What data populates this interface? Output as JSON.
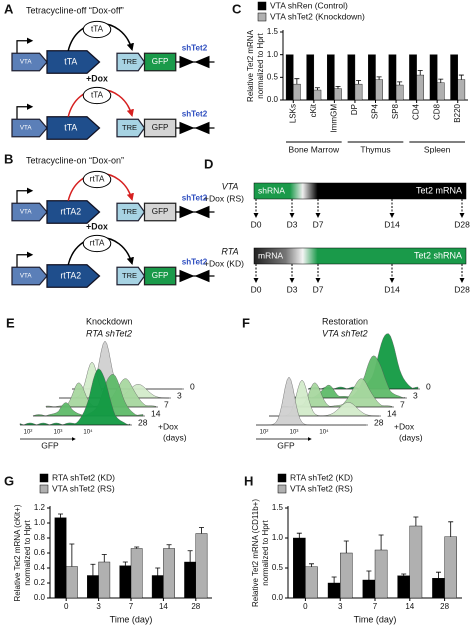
{
  "panel_a": {
    "letter": "A",
    "title": "Tetracycline-off “Dox-off”",
    "dox": "+Dox",
    "constructs": [
      {
        "promoter": "VTA",
        "driver": "tTA",
        "protein": "tTA",
        "operator": "TRE",
        "reporter": "GFP",
        "hairpin": "shTet2"
      },
      {
        "promoter": "VTA",
        "driver": "tTA",
        "protein": "tTA",
        "operator": "TRE",
        "reporter": "GFP",
        "hairpin": "shTet2"
      }
    ]
  },
  "panel_b": {
    "letter": "B",
    "title": "Tetracycline-on “Dox-on”",
    "dox": "+Dox",
    "constructs": [
      {
        "promoter": "VTA",
        "driver": "rtTA2",
        "protein": "rtTA",
        "operator": "TRE",
        "reporter": "GFP",
        "hairpin": "shTet2"
      },
      {
        "promoter": "VTA",
        "driver": "rtTA2",
        "protein": "rtTA",
        "operator": "TRE",
        "reporter": "GFP",
        "hairpin": "shTet2"
      }
    ]
  },
  "panel_d": {
    "letter": "D",
    "timelines": [
      {
        "line": "VTA",
        "treatment": "+Dox (RS)",
        "start_label": "shRNA",
        "end_label": "Tet2 mRNA"
      },
      {
        "line": "RTA",
        "treatment": "+Dox (KD)",
        "start_label": "mRNA",
        "end_label": "Tet2 shRNA"
      }
    ],
    "timepoints": [
      "D0",
      "D3",
      "D7",
      "D14",
      "D28"
    ]
  },
  "panel_e": {
    "letter": "E",
    "title": "Knockdown",
    "subtitle": "RTA shTet2",
    "days": [
      "0",
      "3",
      "7",
      "14",
      "28"
    ],
    "treatment": "+Dox",
    "unit": "(days)",
    "axis": "GFP",
    "axis_ticks": [
      "10²",
      "10³",
      "10⁴"
    ]
  },
  "panel_f": {
    "letter": "F",
    "title": "Restoration",
    "subtitle": "VTA shTet2",
    "days": [
      "0",
      "3",
      "7",
      "14",
      "28"
    ],
    "treatment": "+Dox",
    "unit": "(days)",
    "axis": "GFP",
    "axis_ticks": [
      "10²",
      "10³",
      "10⁴"
    ]
  },
  "chart_data": [
    {
      "panel": "C",
      "type": "bar",
      "ylabel": [
        "Relative Tet2 mRNA",
        "normalized to Hprt"
      ],
      "categories": [
        "LSKs",
        "cKit",
        "ImmGM",
        "DP",
        "SP4",
        "SP8",
        "CD4",
        "CD8",
        "B220"
      ],
      "groups": [
        {
          "name": "Bone Marrow",
          "members": [
            "LSKs",
            "cKit",
            "ImmGM"
          ]
        },
        {
          "name": "Thymus",
          "members": [
            "DP",
            "SP4",
            "SP8"
          ]
        },
        {
          "name": "Spleen",
          "members": [
            "CD4",
            "CD8",
            "B220"
          ]
        }
      ],
      "series": [
        {
          "name": "VTA shRen (Control)",
          "color": "#000000",
          "values": [
            1,
            1,
            1,
            1,
            1,
            1,
            1,
            1,
            1
          ]
        },
        {
          "name": "VTA shTet2 (Knockdown)",
          "color": "#b0b0b0",
          "values": [
            0.35,
            0.22,
            0.25,
            0.35,
            0.45,
            0.33,
            0.55,
            0.38,
            0.45
          ],
          "errors": [
            0.12,
            0.05,
            0.05,
            0.08,
            0.06,
            0.07,
            0.1,
            0.08,
            0.1
          ]
        }
      ],
      "ylim": [
        0,
        1.5
      ],
      "yticks": [
        {
          "value": 0,
          "label": "0.0"
        },
        0.5,
        {
          "value": 1,
          "label": "1.0"
        },
        1.5
      ],
      "legend": "top"
    },
    {
      "panel": "G",
      "type": "bar",
      "ylabel": [
        "Relative Tet2 mRNA (cKit+)",
        "normalized to Hprt"
      ],
      "xlabel": "Time (day)",
      "categories": [
        "0",
        "3",
        "7",
        "14",
        "28"
      ],
      "series": [
        {
          "name": "RTA shTet2 (KD)",
          "color": "#000000",
          "values": [
            1.07,
            0.3,
            0.43,
            0.3,
            0.48
          ],
          "errors": [
            0.05,
            0.15,
            0.05,
            0.1,
            0.15
          ]
        },
        {
          "name": "VTA shTet2 (RS)",
          "color": "#b0b0b0",
          "values": [
            0.42,
            0.48,
            0.66,
            0.66,
            0.86
          ],
          "errors": [
            0.3,
            0.1,
            0.02,
            0.05,
            0.08
          ]
        }
      ],
      "ylim": [
        0,
        1.2
      ],
      "yticks": [
        {
          "value": 0,
          "label": "0.0"
        },
        0.2,
        0.4,
        0.6,
        0.8,
        {
          "value": 1,
          "label": "1.0"
        },
        1.2
      ],
      "legend": "top"
    },
    {
      "panel": "H",
      "type": "bar",
      "ylabel": [
        "Relative Tet2 mRNA (CD11b+)",
        "normalized to Hprt"
      ],
      "xlabel": "Time (day)",
      "categories": [
        "0",
        "3",
        "7",
        "14",
        "28"
      ],
      "series": [
        {
          "name": "RTA shTet2 (KD)",
          "color": "#000000",
          "values": [
            1.0,
            0.25,
            0.3,
            0.37,
            0.33
          ],
          "errors": [
            0.08,
            0.1,
            0.15,
            0.03,
            0.1
          ]
        },
        {
          "name": "VTA shTet2 (RS)",
          "color": "#b0b0b0",
          "values": [
            0.52,
            0.75,
            0.8,
            1.2,
            1.02
          ],
          "errors": [
            0.05,
            0.2,
            0.25,
            0.15,
            0.25
          ]
        }
      ],
      "ylim": [
        0,
        1.5
      ],
      "yticks": [
        {
          "value": 0,
          "label": "0.0"
        },
        0.5,
        {
          "value": 1,
          "label": "1.0"
        },
        1.5
      ],
      "legend": "top"
    }
  ]
}
